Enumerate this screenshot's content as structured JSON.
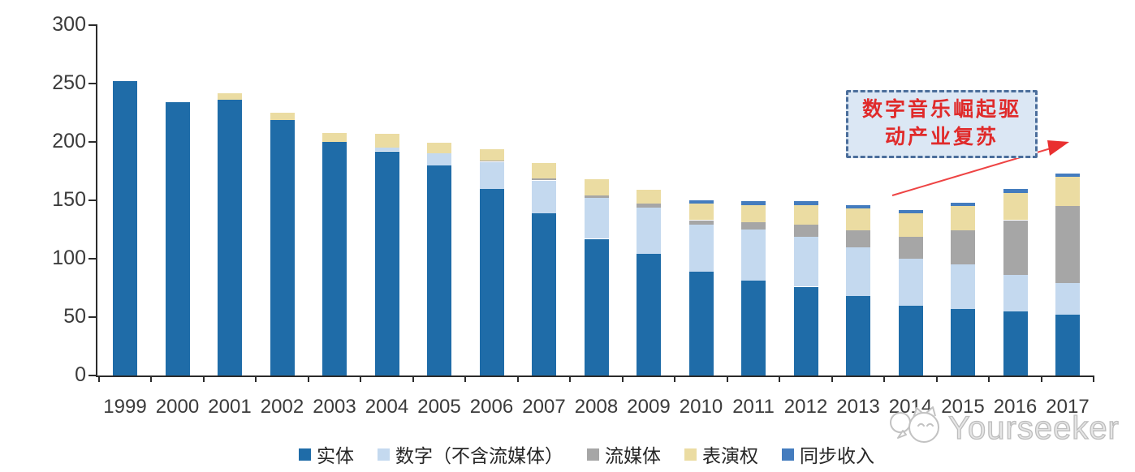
{
  "chart_data": {
    "type": "bar",
    "stacked": true,
    "title": "",
    "categories": [
      "1999",
      "2000",
      "2001",
      "2002",
      "2003",
      "2004",
      "2005",
      "2006",
      "2007",
      "2008",
      "2009",
      "2010",
      "2011",
      "2012",
      "2013",
      "2014",
      "2015",
      "2016",
      "2017"
    ],
    "series": [
      {
        "name": "实体",
        "color": "#1f6ca8",
        "values": [
          252,
          234,
          236,
          219,
          200,
          192,
          180,
          160,
          139,
          117,
          104,
          89,
          81,
          76,
          68,
          60,
          57,
          55,
          52
        ]
      },
      {
        "name": "数字（不含流媒体）",
        "color": "#c4d9ef",
        "values": [
          0,
          0,
          0,
          0,
          0,
          3,
          10,
          23,
          28,
          35,
          40,
          40,
          44,
          43,
          42,
          40,
          38,
          31,
          27
        ]
      },
      {
        "name": "流媒体",
        "color": "#a6a6a6",
        "values": [
          0,
          0,
          0,
          0,
          0,
          0,
          0,
          1,
          2,
          2,
          3,
          4,
          6,
          10,
          14,
          19,
          29,
          47,
          66
        ]
      },
      {
        "name": "表演权",
        "color": "#ebdca2",
        "values": [
          0,
          0,
          6,
          6,
          8,
          12,
          9,
          10,
          13,
          14,
          12,
          14,
          15,
          17,
          19,
          20,
          21,
          23,
          25
        ]
      },
      {
        "name": "同步收入",
        "color": "#447cbe",
        "values": [
          0,
          0,
          0,
          0,
          0,
          0,
          0,
          0,
          0,
          0,
          0,
          3,
          3,
          3,
          3,
          3,
          3,
          4,
          3
        ]
      }
    ],
    "xlabel": "",
    "ylabel": "",
    "ylim": [
      0,
      300
    ],
    "y_ticks": [
      0,
      50,
      100,
      150,
      200,
      250,
      300
    ],
    "grid": false,
    "legend_position": "bottom"
  },
  "annotation": {
    "line1": "数字音乐崛起驱",
    "line2": "动产业复苏",
    "text_color": "#e02a2a",
    "border_color": "#4b6e9b",
    "fill_color": "#dbe7f4",
    "arrow_color": "#ee4444"
  },
  "watermark": {
    "text": "Yourseeker",
    "logo": "cat-logo-icon",
    "color": "#bdbdbd"
  }
}
